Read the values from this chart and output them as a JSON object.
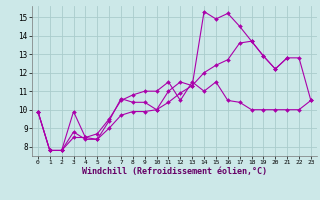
{
  "background_color": "#cce8e8",
  "grid_color": "#aacccc",
  "line_color": "#aa00aa",
  "marker_color": "#aa00aa",
  "xlabel": "Windchill (Refroidissement éolien,°C)",
  "xlabel_fontsize": 6.0,
  "xlim": [
    -0.5,
    23.5
  ],
  "ylim": [
    7.5,
    15.6
  ],
  "yticks": [
    8,
    9,
    10,
    11,
    12,
    13,
    14,
    15
  ],
  "xticks": [
    0,
    1,
    2,
    3,
    4,
    5,
    6,
    7,
    8,
    9,
    10,
    11,
    12,
    13,
    14,
    15,
    16,
    17,
    18,
    19,
    20,
    21,
    22,
    23
  ],
  "series": [
    {
      "x": [
        0,
        1,
        2,
        3,
        4,
        5,
        6,
        7,
        8,
        9,
        10,
        11,
        12,
        13,
        14,
        15,
        16,
        17,
        18,
        19,
        20,
        21
      ],
      "y": [
        9.9,
        7.8,
        7.8,
        9.9,
        8.5,
        8.4,
        9.4,
        10.6,
        10.4,
        10.4,
        10.0,
        11.0,
        11.5,
        11.3,
        15.3,
        14.9,
        15.2,
        14.5,
        13.7,
        12.9,
        12.2,
        12.8
      ]
    },
    {
      "x": [
        0,
        1,
        2,
        3,
        4,
        5,
        6,
        7,
        8,
        9,
        10,
        11,
        12,
        13,
        14,
        15,
        16,
        17,
        18,
        19,
        20,
        21,
        22,
        23
      ],
      "y": [
        9.9,
        7.8,
        7.8,
        8.5,
        8.5,
        8.7,
        9.5,
        10.5,
        10.8,
        11.0,
        11.0,
        11.5,
        10.5,
        11.5,
        11.0,
        11.5,
        10.5,
        10.4,
        10.0,
        10.0,
        10.0,
        10.0,
        10.0,
        10.5
      ]
    },
    {
      "x": [
        0,
        1,
        2,
        3,
        4,
        5,
        6,
        7,
        8,
        9,
        10,
        11,
        12,
        13,
        14,
        15,
        16,
        17,
        18,
        19,
        20,
        21,
        22,
        23
      ],
      "y": [
        9.9,
        7.8,
        7.8,
        8.8,
        8.4,
        8.4,
        9.0,
        9.7,
        9.9,
        9.9,
        10.0,
        10.4,
        10.9,
        11.3,
        12.0,
        12.4,
        12.7,
        13.6,
        13.7,
        12.9,
        12.2,
        12.8,
        12.8,
        10.5
      ]
    }
  ]
}
